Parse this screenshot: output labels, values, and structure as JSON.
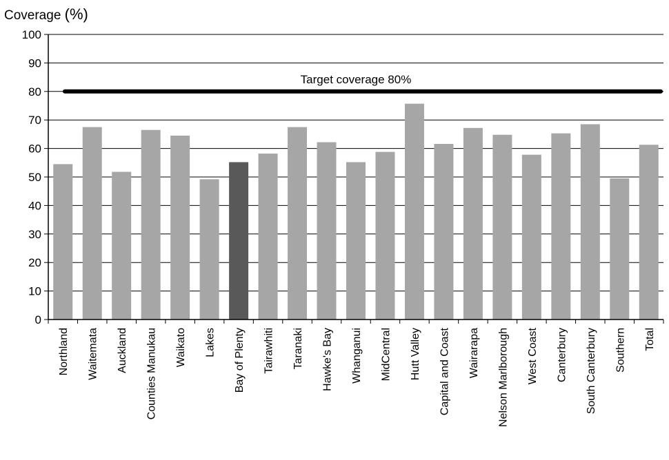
{
  "chart_data": {
    "type": "bar",
    "ylabel_text": "Coverage",
    "ylabel_unit": "(%)",
    "ylim": [
      0,
      100
    ],
    "yticks": [
      0,
      10,
      20,
      30,
      40,
      50,
      60,
      70,
      80,
      90,
      100
    ],
    "grid": true,
    "categories": [
      "Northland",
      "Waitemata",
      "Auckland",
      "Counties Manukau",
      "Waikato",
      "Lakes",
      "Bay of Plenty",
      "Tairawhiti",
      "Taranaki",
      "Hawke's Bay",
      "Whanganui",
      "MidCentral",
      "Hutt Valley",
      "Capital and Coast",
      "Wairarapa",
      "Nelson Marlborough",
      "West Coast",
      "Canterbury",
      "South Canterbury",
      "Southern",
      "Total"
    ],
    "values": [
      54.5,
      67.5,
      51.8,
      66.5,
      64.5,
      49.2,
      55.2,
      58.2,
      67.5,
      62.2,
      55.2,
      58.8,
      75.7,
      61.6,
      67.2,
      64.8,
      57.8,
      65.3,
      68.5,
      49.5,
      61.3
    ],
    "highlight": "Bay of Plenty",
    "bar_color": "#a6a6a6",
    "highlight_color": "#595959",
    "target": {
      "value": 80,
      "label": "Target coverage 80%",
      "color": "#000000"
    }
  }
}
